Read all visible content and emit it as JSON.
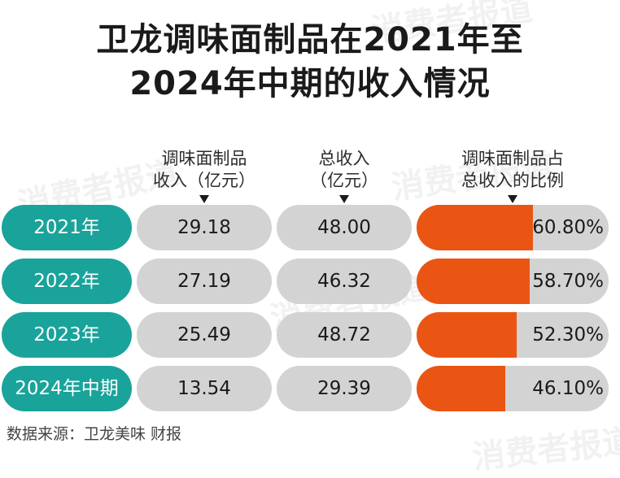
{
  "title": "卫龙调味面制品在2021年至2024年中期的收入情况",
  "title_lines": [
    "卫龙调味面制品在2021年至",
    "2024年中期的收入情况"
  ],
  "watermark": "消费者报道",
  "colors": {
    "label_bg": "#1aa39a",
    "pill_bg": "#d3d3d3",
    "ratio_fill": "#ea5514"
  },
  "chart_data": {
    "type": "table",
    "title": "卫龙调味面制品在2021年至2024年中期的收入情况",
    "columns": [
      "调味面制品收入（亿元）",
      "总收入（亿元）",
      "调味面制品占总收入的比例"
    ],
    "column_header_lines": [
      [
        "调味面制品",
        "收入（亿元）"
      ],
      [
        "总收入",
        "（亿元）"
      ],
      [
        "调味面制品占",
        "总收入的比例"
      ]
    ],
    "rows": [
      {
        "period": "2021年",
        "segment_revenue": "29.18",
        "total_revenue": "48.00",
        "ratio": "60.80%",
        "ratio_value": 0.608
      },
      {
        "period": "2022年",
        "segment_revenue": "27.19",
        "total_revenue": "46.32",
        "ratio": "58.70%",
        "ratio_value": 0.587
      },
      {
        "period": "2023年",
        "segment_revenue": "25.49",
        "total_revenue": "48.72",
        "ratio": "52.30%",
        "ratio_value": 0.523
      },
      {
        "period": "2024年中期",
        "segment_revenue": "13.54",
        "total_revenue": "29.39",
        "ratio": "46.10%",
        "ratio_value": 0.461
      }
    ]
  },
  "source": "数据来源：卫龙美味 财报"
}
